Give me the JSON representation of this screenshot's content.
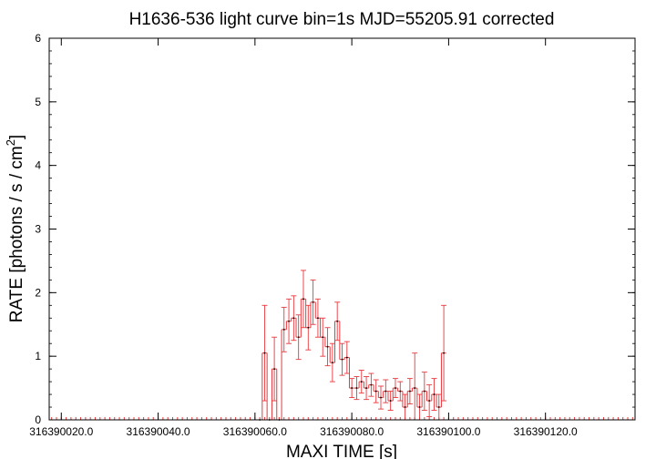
{
  "chart_data": {
    "type": "line",
    "title": "H1636-536 light curve bin=1s MJD=55205.91 corrected",
    "xlabel": "MAXI TIME [s]",
    "ylabel_main": "RATE [photons / s / cm",
    "ylabel_sup": "2",
    "ylabel_end": "]",
    "xlim": [
      316390017.5,
      316390138.5
    ],
    "ylim": [
      0,
      6
    ],
    "x_ticks": [
      316390020.0,
      316390040.0,
      316390060.0,
      316390080.0,
      316390100.0,
      316390120.0
    ],
    "x_tick_labels": [
      "316390020.0",
      "316390040.0",
      "316390060.0",
      "316390080.0",
      "316390100.0",
      "316390120.0"
    ],
    "y_ticks": [
      0,
      1,
      2,
      3,
      4,
      5,
      6
    ],
    "y_tick_labels": [
      "0",
      "1",
      "2",
      "3",
      "4",
      "5",
      "6"
    ],
    "x_minor_step": 1,
    "y_minor_step": 0.2,
    "grid": false,
    "series": [
      {
        "color": "#e8383d",
        "bin_width": 1,
        "x": [
          316390061,
          316390062,
          316390063,
          316390064,
          316390065,
          316390066,
          316390067,
          316390068,
          316390069,
          316390070,
          316390071,
          316390072,
          316390073,
          316390074,
          316390075,
          316390076,
          316390077,
          316390078,
          316390079,
          316390080,
          316390081,
          316390082,
          316390083,
          316390084,
          316390085,
          316390086,
          316390087,
          316390088,
          316390089,
          316390090,
          316390091,
          316390092,
          316390093,
          316390094,
          316390095,
          316390096,
          316390097,
          316390098,
          316390099
        ],
        "y": [
          0,
          1.05,
          0,
          0.8,
          0,
          1.42,
          1.55,
          1.6,
          1.3,
          1.9,
          1.45,
          1.85,
          1.6,
          1.3,
          1.15,
          0.9,
          1.55,
          0.95,
          0.98,
          0.5,
          0.5,
          0.6,
          0.5,
          0.55,
          0.45,
          0.35,
          0.45,
          0.3,
          0.5,
          0.45,
          0.2,
          0.45,
          0.5,
          0.2,
          0.45,
          0.3,
          0.4,
          0.2,
          1.05
        ],
        "yerr": [
          0,
          0.75,
          0,
          0.5,
          0,
          0.35,
          0.35,
          0.35,
          0.35,
          0.45,
          0.35,
          0.35,
          0.3,
          0.3,
          0.3,
          0.3,
          0.3,
          0.25,
          0.25,
          0.15,
          0.18,
          0.18,
          0.18,
          0.18,
          0.18,
          0.18,
          0.18,
          0.15,
          0.15,
          0.15,
          0.2,
          0.2,
          0.55,
          0.2,
          0.3,
          0.25,
          0.25,
          0.2,
          0.75
        ]
      }
    ]
  }
}
